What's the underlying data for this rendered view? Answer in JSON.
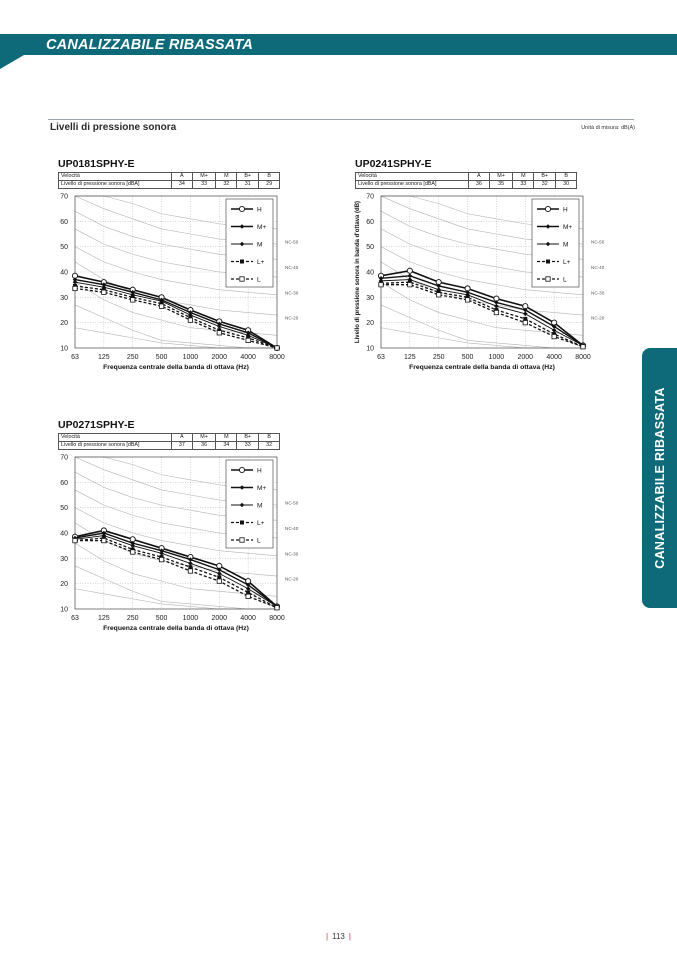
{
  "header": {
    "title": "CANALIZZABILE RIBASSATA"
  },
  "section": {
    "title": "Livelli di pressione sonora",
    "unit_note": "Unità di misura: dB(A)"
  },
  "side_tab": {
    "label": "CANALIZZABILE RIBASSATA"
  },
  "page_number": "113",
  "colors": {
    "accent": "#0e6a78"
  },
  "chart_data": [
    {
      "type": "line",
      "title": "UP0181SPHY-E",
      "table": {
        "header_label": "Velocità",
        "row_label": "Livello di pressione sonora [dBA]",
        "speeds": [
          "A",
          "M+",
          "M",
          "B+",
          "B"
        ],
        "values": [
          "34",
          "33",
          "32",
          "31",
          "29"
        ]
      },
      "x": [
        "63",
        "125",
        "250",
        "500",
        "1000",
        "2000",
        "4000",
        "8000"
      ],
      "xlabel": "Frequenza centrale della banda di ottava (Hz)",
      "ylabel": "",
      "ylim": [
        10,
        70
      ],
      "yticks": [
        "10",
        "20",
        "30",
        "40",
        "50",
        "60",
        "70"
      ],
      "nc_labels": [
        "NC-50",
        "NC-40",
        "NC-30",
        "NC-20"
      ],
      "series": [
        {
          "name": "H",
          "values": [
            38.5,
            36,
            33,
            30,
            25,
            20.5,
            17,
            10
          ]
        },
        {
          "name": "M+",
          "values": [
            37,
            35,
            32,
            29,
            24,
            19.5,
            16,
            10
          ]
        },
        {
          "name": "M",
          "values": [
            36,
            34,
            31,
            28.5,
            23,
            18.5,
            15,
            10
          ]
        },
        {
          "name": "L+",
          "values": [
            34.5,
            33,
            30,
            27.5,
            22,
            17,
            14,
            10
          ]
        },
        {
          "name": "L",
          "values": [
            33.5,
            32,
            29,
            26.5,
            21,
            16,
            13,
            10
          ]
        }
      ]
    },
    {
      "type": "line",
      "title": "UP0241SPHY-E",
      "table": {
        "header_label": "Velocità",
        "row_label": "Livello di pressione sonora [dBA]",
        "speeds": [
          "A",
          "M+",
          "M",
          "B+",
          "B"
        ],
        "values": [
          "36",
          "35",
          "33",
          "32",
          "30"
        ]
      },
      "x": [
        "63",
        "125",
        "250",
        "500",
        "1000",
        "2000",
        "4000",
        "8000"
      ],
      "xlabel": "Frequenza centrale della banda di ottava (Hz)",
      "ylabel": "Livello di pressione sonora in banda d'ottava (dB)",
      "ylim": [
        10,
        70
      ],
      "yticks": [
        "10",
        "20",
        "30",
        "40",
        "50",
        "60",
        "70"
      ],
      "nc_labels": [
        "NC-50",
        "NC-40",
        "NC-30",
        "NC-20"
      ],
      "series": [
        {
          "name": "H",
          "values": [
            38.5,
            40.5,
            36,
            33.5,
            29.5,
            26.5,
            20,
            11
          ]
        },
        {
          "name": "M+",
          "values": [
            37.5,
            38.5,
            34.5,
            32,
            28,
            25,
            18.5,
            11
          ]
        },
        {
          "name": "M",
          "values": [
            36.5,
            37,
            33,
            31,
            26.5,
            23.5,
            17,
            11
          ]
        },
        {
          "name": "L+",
          "values": [
            35.5,
            36,
            32,
            30,
            25,
            21.5,
            15.5,
            10.5
          ]
        },
        {
          "name": "L",
          "values": [
            35,
            35,
            31,
            29,
            24,
            20,
            14.5,
            10.5
          ]
        }
      ]
    },
    {
      "type": "line",
      "title": "UP0271SPHY-E",
      "table": {
        "header_label": "Velocità",
        "row_label": "Livello di pressione sonora [dBA]",
        "speeds": [
          "A",
          "M+",
          "M",
          "B+",
          "B"
        ],
        "values": [
          "37",
          "36",
          "34",
          "33",
          "32"
        ]
      },
      "x": [
        "63",
        "125",
        "250",
        "500",
        "1000",
        "2000",
        "4000",
        "8000"
      ],
      "xlabel": "Frequenza centrale della banda di ottava (Hz)",
      "ylabel": "",
      "ylim": [
        10,
        70
      ],
      "yticks": [
        "10",
        "20",
        "30",
        "40",
        "50",
        "60",
        "70"
      ],
      "nc_labels": [
        "NC-50",
        "NC-40",
        "NC-30",
        "NC-20"
      ],
      "series": [
        {
          "name": "H",
          "values": [
            38.5,
            41,
            37.5,
            34,
            30.5,
            27,
            21,
            11
          ]
        },
        {
          "name": "M+",
          "values": [
            38,
            40,
            36,
            33,
            29.5,
            25.5,
            19.5,
            11
          ]
        },
        {
          "name": "M",
          "values": [
            37.5,
            39,
            35,
            32,
            28,
            24,
            18,
            11
          ]
        },
        {
          "name": "L+",
          "values": [
            37,
            38,
            33.5,
            30.5,
            26.5,
            22.5,
            16.5,
            10.5
          ]
        },
        {
          "name": "L",
          "values": [
            37,
            37,
            32.5,
            29.5,
            25,
            21,
            15,
            10.5
          ]
        }
      ]
    }
  ]
}
